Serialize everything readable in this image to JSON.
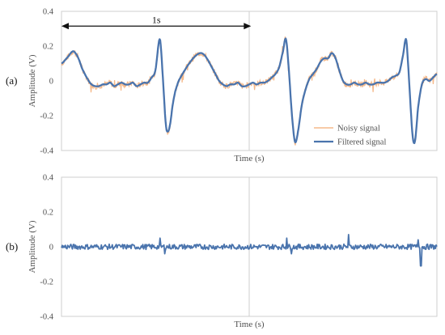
{
  "chart_data": [
    {
      "type": "line",
      "panel_label": "(a)",
      "xlabel": "Time (s)",
      "ylabel": "Amplitude (V)",
      "ylim": [
        -0.4,
        0.4
      ],
      "yticks": [
        "0.4",
        "0.2",
        "0",
        "-0.2",
        "-0.4"
      ],
      "ytick_values": [
        0.4,
        0.2,
        0,
        -0.2,
        -0.4
      ],
      "xlim": [
        0,
        1
      ],
      "grid": "vertical center line",
      "legend_position": "bottom-right",
      "annotation": {
        "text": "1s",
        "x_start": 0.0,
        "x_end": 0.505,
        "y": 0.315
      },
      "series": [
        {
          "name": "Noisy signal",
          "color": "#f5b98a"
        },
        {
          "name": "Filtered signal",
          "color": "#4a74ad"
        }
      ],
      "x": [
        0.0,
        0.018,
        0.03,
        0.037,
        0.045,
        0.055,
        0.07,
        0.08,
        0.09,
        0.1,
        0.11,
        0.12,
        0.13,
        0.14,
        0.15,
        0.16,
        0.17,
        0.18,
        0.19,
        0.2,
        0.21,
        0.22,
        0.23,
        0.24,
        0.25,
        0.262,
        0.27,
        0.278,
        0.284,
        0.29,
        0.296,
        0.303,
        0.312,
        0.325,
        0.34,
        0.355,
        0.37,
        0.38,
        0.39,
        0.4,
        0.41,
        0.42,
        0.43,
        0.44,
        0.45,
        0.46,
        0.47,
        0.48,
        0.49,
        0.5,
        0.51,
        0.52,
        0.53,
        0.54,
        0.55,
        0.56,
        0.57,
        0.58,
        0.59,
        0.598,
        0.606,
        0.614,
        0.622,
        0.63,
        0.64,
        0.65,
        0.66,
        0.67,
        0.68,
        0.69,
        0.7,
        0.71,
        0.72,
        0.73,
        0.74,
        0.75,
        0.76,
        0.77,
        0.78,
        0.79,
        0.8,
        0.81,
        0.82,
        0.83,
        0.84,
        0.85,
        0.86,
        0.87,
        0.88,
        0.89,
        0.9,
        0.91,
        0.918,
        0.924,
        0.93,
        0.936,
        0.942,
        0.95,
        0.96,
        0.97,
        0.98,
        0.99,
        1.0
      ],
      "filtered": [
        0.1,
        0.14,
        0.17,
        0.16,
        0.13,
        0.07,
        0.01,
        -0.02,
        -0.03,
        -0.03,
        -0.02,
        -0.02,
        -0.01,
        -0.03,
        -0.02,
        -0.01,
        -0.02,
        -0.02,
        -0.01,
        -0.03,
        -0.02,
        -0.01,
        -0.01,
        0.02,
        0.06,
        0.24,
        0.02,
        -0.25,
        -0.29,
        -0.24,
        -0.14,
        -0.06,
        0.0,
        0.05,
        0.1,
        0.14,
        0.16,
        0.15,
        0.12,
        0.08,
        0.04,
        0.0,
        -0.02,
        -0.03,
        -0.02,
        -0.02,
        -0.01,
        -0.03,
        -0.03,
        -0.02,
        -0.01,
        -0.02,
        -0.01,
        -0.01,
        0.0,
        0.02,
        0.04,
        0.08,
        0.17,
        0.24,
        0.05,
        -0.2,
        -0.35,
        -0.29,
        -0.14,
        -0.05,
        0.01,
        0.04,
        0.07,
        0.11,
        0.13,
        0.13,
        0.16,
        0.13,
        0.06,
        0.0,
        -0.02,
        -0.02,
        -0.01,
        -0.02,
        -0.02,
        -0.01,
        -0.02,
        -0.02,
        -0.01,
        -0.01,
        -0.01,
        0.0,
        0.02,
        0.03,
        0.05,
        0.15,
        0.24,
        0.07,
        -0.15,
        -0.33,
        -0.34,
        -0.15,
        -0.02,
        0.01,
        0.0,
        0.02,
        0.04
      ]
    },
    {
      "type": "line",
      "panel_label": "(b)",
      "xlabel": "Time (s)",
      "ylabel": "Amplitude (V)",
      "ylim": [
        -0.4,
        0.4
      ],
      "yticks": [
        "0.4",
        "0.2",
        "0",
        "-0.2",
        "-0.4"
      ],
      "ytick_values": [
        0.4,
        0.2,
        0,
        -0.2,
        -0.4
      ],
      "xlim": [
        0,
        1
      ],
      "grid": "vertical center line",
      "series": [
        {
          "name": "",
          "color": "#4a74ad"
        }
      ],
      "spikes": [
        {
          "x": 0.262,
          "y": 0.05
        },
        {
          "x": 0.275,
          "y": -0.04
        },
        {
          "x": 0.6,
          "y": 0.05
        },
        {
          "x": 0.612,
          "y": -0.04
        },
        {
          "x": 0.765,
          "y": 0.07
        },
        {
          "x": 0.95,
          "y": 0.04
        },
        {
          "x": 0.957,
          "y": -0.11
        }
      ],
      "noise_amplitude": 0.015
    }
  ]
}
